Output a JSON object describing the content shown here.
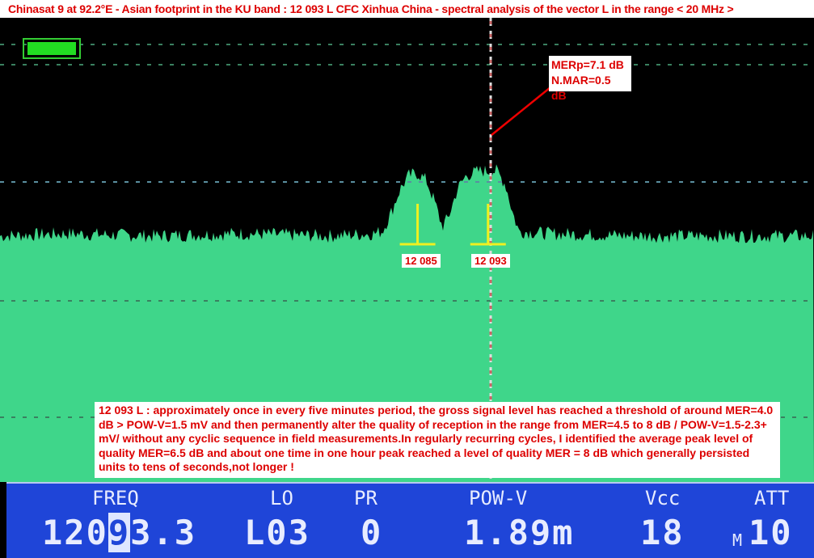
{
  "title": "Chinasat 9 at 92.2°E - Asian footprint in the KU band : 12 093 L CFC Xinhua China - spectral analysis of the vector L in the range  < 20 MHz >",
  "annotations": {
    "mer_line1": "MERp=7.1 dB",
    "mer_line2": "N.MAR=0.5 dB",
    "marker1": "12 085",
    "marker2": "12 093",
    "note": "12 093 L : approximately once in every five minutes period, the gross signal level has reached a threshold of around MER=4.0 dB  > POW-V=1.5 mV and then permanently alter the quality of reception in the range from MER=4.5 to 8 dB / POW-V=1.5-2.3+ mV/ without any cyclic sequence in field measurements.In regularly recurring cycles, I identified the average peak level of quality MER=6.5 dB and about one time in one hour peak reached a level of quality MER = 8 dB which generally persisted units to tens of seconds,not longer !"
  },
  "status_bar": {
    "freq_label": "FREQ",
    "freq_pre": "120",
    "freq_cursor": "9",
    "freq_post": "3.3",
    "lo_label": "LO",
    "lo_value": "L03",
    "pr_label": "PR",
    "pr_value": "0",
    "pow_label": "POW-V",
    "pow_value": "1.89m",
    "vcc_label": "Vcc",
    "vcc_value": "18",
    "att_label": "ATT",
    "att_prefix": "M",
    "att_value": "10"
  },
  "colors": {
    "spectrum": "#3fd68a",
    "background": "#000000",
    "marker": "#f0f020",
    "status_bar": "#1f45d8",
    "annotation_text": "#dd0000"
  },
  "chart_data": {
    "type": "area",
    "title": "",
    "xlabel": "",
    "ylabel": "",
    "grid": true,
    "xlim": [
      12037.6,
      12130
    ],
    "ylim": [
      0,
      100
    ],
    "markers": [
      12085,
      12093
    ],
    "cursor": 12093.3,
    "x": [
      12037.6,
      12045,
      12055,
      12065,
      12075,
      12080,
      12081,
      12082,
      12083,
      12084,
      12085,
      12086,
      12087,
      12087.8,
      12088.5,
      12089.5,
      12090.5,
      12092,
      12093,
      12094,
      12095,
      12095.8,
      12096.5,
      12100,
      12110,
      12120,
      12130
    ],
    "y": [
      53,
      53.5,
      53,
      53.5,
      53,
      53.5,
      54,
      58,
      63,
      66,
      66.5,
      65,
      60,
      55,
      57,
      63,
      66,
      67,
      67,
      67,
      64,
      58,
      54,
      53.5,
      53,
      53,
      53
    ]
  }
}
